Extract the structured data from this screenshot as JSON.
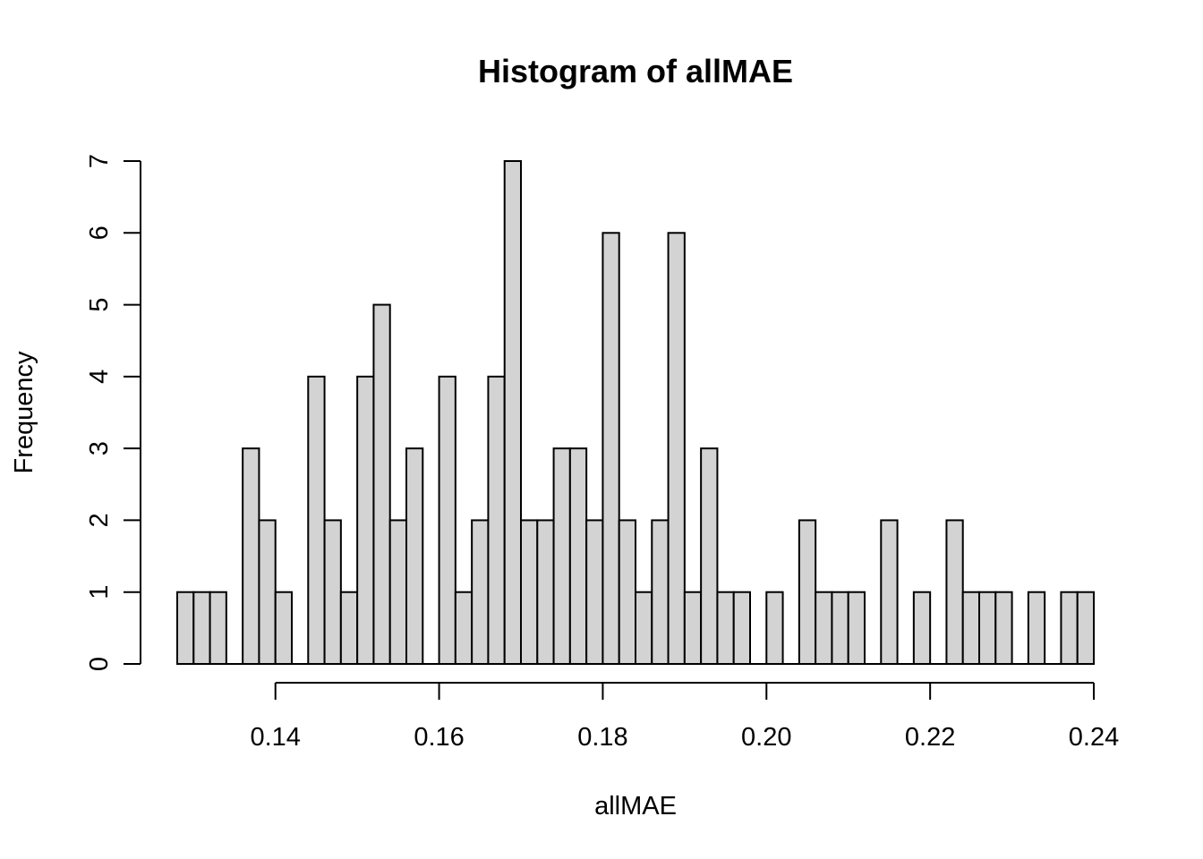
{
  "chart_data": {
    "type": "bar",
    "title": "Histogram of allMAE",
    "xlabel": "allMAE",
    "ylabel": "Frequency",
    "bin_width": 0.002,
    "bins_start": 0.128,
    "frequencies": [
      1,
      1,
      1,
      0,
      3,
      2,
      1,
      0,
      4,
      2,
      1,
      4,
      5,
      2,
      3,
      0,
      4,
      1,
      2,
      4,
      7,
      2,
      2,
      3,
      3,
      2,
      6,
      2,
      1,
      2,
      6,
      1,
      3,
      1,
      1,
      0,
      1,
      0,
      2,
      1,
      1,
      1,
      0,
      2,
      0,
      1,
      0,
      2,
      1,
      1,
      1,
      0,
      1,
      0,
      1,
      1
    ],
    "xlim": [
      0.128,
      0.24
    ],
    "ylim": [
      0,
      7
    ],
    "x_ticks": [
      0.14,
      0.16,
      0.18,
      0.2,
      0.22,
      0.24
    ],
    "x_tick_labels": [
      "0.14",
      "0.16",
      "0.18",
      "0.20",
      "0.22",
      "0.24"
    ],
    "y_ticks": [
      0,
      1,
      2,
      3,
      4,
      5,
      6,
      7
    ],
    "y_tick_labels": [
      "0",
      "1",
      "2",
      "3",
      "4",
      "5",
      "6",
      "7"
    ],
    "grid": false,
    "bar_color": "#d3d3d3",
    "border_color": "#000000"
  }
}
